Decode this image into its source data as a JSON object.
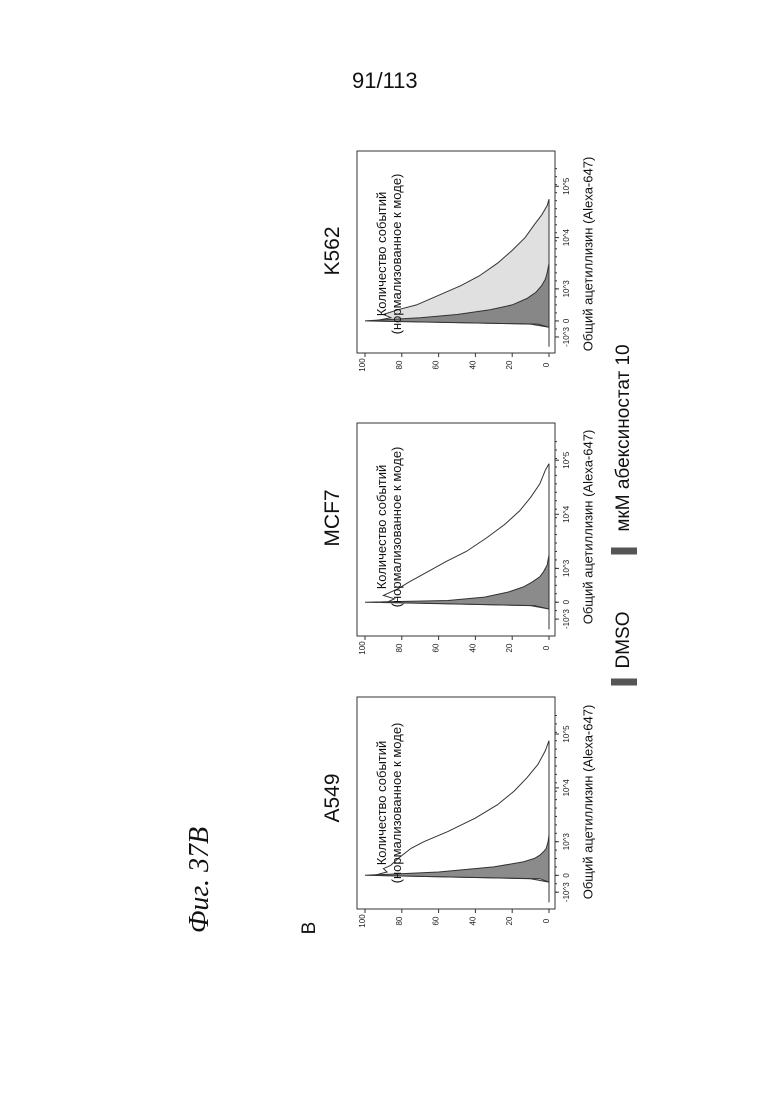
{
  "page_number": "91/113",
  "figure_title": "Фиг. 37B",
  "panel_letter": "B",
  "y_axis_label_line1": "Количество событий",
  "y_axis_label_line2": "(нормализованное к моде)",
  "x_axis_label": "Общий ацетиллизин (Alexa-647)",
  "legend": [
    {
      "label": "DMSO",
      "color": "#555555"
    },
    {
      "label": "мкМ абексиностат 10",
      "color": "#555555"
    }
  ],
  "colors": {
    "dmso_fill": "#777777",
    "abex_fill": "#cccccc",
    "line": "#333333"
  },
  "chart_data": [
    {
      "type": "area",
      "title": "A549",
      "xlabel": "Общий ацетиллизин (Alexa-647)",
      "ylabel": "Количество событий (нормализованное к моде)",
      "x_ticks": [
        "-10^3",
        "0",
        "10^3",
        "10^4",
        "10^5"
      ],
      "y_ticks": [
        "0",
        "20",
        "40",
        "60",
        "80",
        "100"
      ],
      "ylim": [
        0,
        100
      ],
      "series": [
        {
          "name": "DMSO",
          "x": [
            -0.8,
            -0.2,
            -0.1,
            0.0,
            0.1,
            0.25,
            0.4,
            0.5,
            0.6,
            0.7,
            0.8,
            1.0,
            1.2,
            1.5
          ],
          "values": [
            0,
            0,
            5,
            100,
            60,
            30,
            14,
            8,
            5,
            3,
            1.5,
            0.5,
            0,
            0
          ]
        },
        {
          "name": "мкМ абексиностат 10",
          "x": [
            -0.8,
            -0.2,
            -0.1,
            0.0,
            0.1,
            0.2,
            0.3,
            0.5,
            0.8,
            1.0,
            1.3,
            1.7,
            2.1,
            2.5,
            2.9,
            3.3,
            3.7,
            4.0
          ],
          "values": [
            0,
            0,
            10,
            95,
            88,
            90,
            86,
            82,
            75,
            68,
            55,
            40,
            28,
            19,
            12,
            6,
            2,
            0
          ]
        }
      ]
    },
    {
      "type": "area",
      "title": "MCF7",
      "xlabel": "Общий ацетиллизин (Alexa-647)",
      "ylabel": "Количество событий (нормализованное к моде)",
      "x_ticks": [
        "-10^3",
        "0",
        "10^3",
        "10^4",
        "10^5"
      ],
      "y_ticks": [
        "0",
        "20",
        "40",
        "60",
        "80",
        "100"
      ],
      "ylim": [
        0,
        100
      ],
      "series": [
        {
          "name": "DMSO",
          "x": [
            -0.8,
            -0.2,
            -0.1,
            0.0,
            0.05,
            0.15,
            0.3,
            0.45,
            0.6,
            0.75,
            0.9,
            1.1,
            1.4,
            1.7
          ],
          "values": [
            0,
            0,
            8,
            100,
            55,
            35,
            22,
            14,
            9,
            5,
            3,
            1,
            0,
            0
          ]
        },
        {
          "name": "мкМ абексиностат 10",
          "x": [
            -0.8,
            -0.2,
            -0.1,
            0.0,
            0.1,
            0.2,
            0.4,
            0.6,
            0.9,
            1.2,
            1.5,
            1.9,
            2.3,
            2.7,
            3.1,
            3.5,
            3.9,
            4.1
          ],
          "values": [
            0,
            0,
            10,
            88,
            84,
            90,
            82,
            76,
            66,
            56,
            45,
            34,
            24,
            16,
            10,
            5,
            2,
            0
          ]
        }
      ]
    },
    {
      "type": "area",
      "title": "K562",
      "xlabel": "Общий ацетиллизин (Alexa-647)",
      "ylabel": "Количество событий (нормализованное к моде)",
      "x_ticks": [
        "-10^3",
        "0",
        "10^3",
        "10^4",
        "10^5"
      ],
      "y_ticks": [
        "0",
        "20",
        "40",
        "60",
        "80",
        "100"
      ],
      "ylim": [
        0,
        100
      ],
      "series": [
        {
          "name": "DMSO",
          "x": [
            -0.8,
            -0.2,
            -0.1,
            0.0,
            0.1,
            0.2,
            0.35,
            0.5,
            0.7,
            0.9,
            1.1,
            1.3,
            1.5,
            1.8
          ],
          "values": [
            0,
            0,
            6,
            100,
            70,
            50,
            32,
            20,
            12,
            7,
            4,
            2,
            1,
            0
          ]
        },
        {
          "name": "мкМ абексиностат 10",
          "x": [
            -0.8,
            -0.2,
            -0.1,
            0.0,
            0.1,
            0.2,
            0.35,
            0.5,
            0.8,
            1.1,
            1.4,
            1.8,
            2.2,
            2.6,
            3.0,
            3.3,
            3.6,
            3.8
          ],
          "values": [
            0,
            0,
            10,
            95,
            86,
            90,
            82,
            72,
            60,
            48,
            38,
            28,
            20,
            13,
            8,
            4,
            1,
            0
          ]
        }
      ]
    }
  ]
}
